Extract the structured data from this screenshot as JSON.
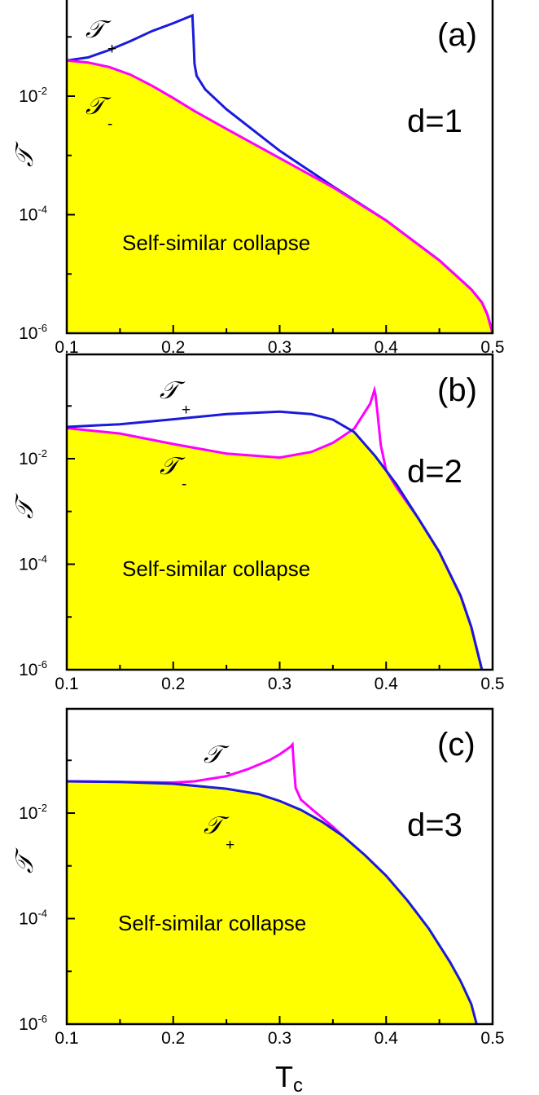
{
  "chart_data": [
    {
      "type": "line",
      "panel_label": "(a)",
      "dimension_label": "d=1",
      "region_label": "Self-similar collapse",
      "ylabel": "𝒯",
      "xlim": [
        0.1,
        0.5
      ],
      "ylim": [
        1e-06,
        1
      ],
      "yscale": "log",
      "x_ticks": [
        "0.1",
        "0.2",
        "0.3",
        "0.4",
        "0.5"
      ],
      "y_ticks": [
        {
          "base": "10",
          "exp": "-2"
        },
        {
          "base": "10",
          "exp": "-4"
        },
        {
          "base": "10",
          "exp": "-6"
        }
      ],
      "series": [
        {
          "name": "+",
          "color": "#1a1adc",
          "x": [
            0.1,
            0.12,
            0.14,
            0.16,
            0.18,
            0.2,
            0.218,
            0.219,
            0.22,
            0.222,
            0.23,
            0.25,
            0.3,
            0.35,
            0.4,
            0.45,
            0.48,
            0.49,
            0.495,
            0.5
          ],
          "y": [
            0.04,
            0.045,
            0.06,
            0.085,
            0.125,
            0.17,
            0.23,
            0.1,
            0.035,
            0.022,
            0.013,
            0.006,
            0.0012,
            0.0003,
            8e-05,
            1.7e-05,
            5.5e-06,
            3.3e-06,
            2.1e-06,
            1e-06
          ]
        },
        {
          "name": "-",
          "color": "#ff00ff",
          "x": [
            0.1,
            0.12,
            0.14,
            0.16,
            0.18,
            0.2,
            0.22,
            0.25,
            0.3,
            0.35,
            0.4,
            0.45,
            0.48,
            0.49,
            0.495,
            0.5
          ],
          "y": [
            0.04,
            0.037,
            0.031,
            0.023,
            0.015,
            0.0093,
            0.0056,
            0.0028,
            0.0009,
            0.00029,
            8e-05,
            1.7e-05,
            5.5e-06,
            3.3e-06,
            2.1e-06,
            1e-06
          ]
        }
      ]
    },
    {
      "type": "line",
      "panel_label": "(b)",
      "dimension_label": "d=2",
      "region_label": "Self-similar collapse",
      "ylabel": "𝒯",
      "xlim": [
        0.1,
        0.5
      ],
      "ylim": [
        1e-06,
        1
      ],
      "yscale": "log",
      "x_ticks": [
        "0.1",
        "0.2",
        "0.3",
        "0.4",
        "0.5"
      ],
      "y_ticks": [
        {
          "base": "10",
          "exp": "-2"
        },
        {
          "base": "10",
          "exp": "-4"
        },
        {
          "base": "10",
          "exp": "-6"
        }
      ],
      "series": [
        {
          "name": "+",
          "color": "#1a1adc",
          "x": [
            0.1,
            0.15,
            0.2,
            0.25,
            0.3,
            0.33,
            0.35,
            0.37,
            0.39,
            0.41,
            0.43,
            0.45,
            0.47,
            0.48,
            0.49
          ],
          "y": [
            0.04,
            0.045,
            0.056,
            0.07,
            0.078,
            0.07,
            0.055,
            0.032,
            0.011,
            0.0032,
            0.00075,
            0.00017,
            2.5e-05,
            6.5e-06,
            1e-06
          ]
        },
        {
          "name": "-",
          "color": "#ff00ff",
          "x": [
            0.1,
            0.15,
            0.2,
            0.25,
            0.3,
            0.33,
            0.35,
            0.37,
            0.385,
            0.389,
            0.39,
            0.392,
            0.395,
            0.4,
            0.41,
            0.43,
            0.45,
            0.47,
            0.48,
            0.49
          ],
          "y": [
            0.038,
            0.03,
            0.019,
            0.0125,
            0.0105,
            0.0135,
            0.02,
            0.037,
            0.11,
            0.2,
            0.16,
            0.07,
            0.018,
            0.006,
            0.0028,
            0.00075,
            0.00017,
            2.5e-05,
            6.5e-06,
            1e-06
          ]
        }
      ]
    },
    {
      "type": "line",
      "panel_label": "(c)",
      "dimension_label": "d=3",
      "region_label": "Self-similar collapse",
      "ylabel": "𝒯",
      "xlim": [
        0.1,
        0.5
      ],
      "ylim": [
        1e-06,
        1
      ],
      "yscale": "log",
      "x_ticks": [
        "0.1",
        "0.2",
        "0.3",
        "0.4",
        "0.5"
      ],
      "y_ticks": [
        {
          "base": "10",
          "exp": "-2"
        },
        {
          "base": "10",
          "exp": "-4"
        },
        {
          "base": "10",
          "exp": "-6"
        }
      ],
      "series": [
        {
          "name": "+",
          "color": "#1a1adc",
          "x": [
            0.1,
            0.15,
            0.2,
            0.25,
            0.28,
            0.3,
            0.32,
            0.34,
            0.36,
            0.38,
            0.4,
            0.42,
            0.44,
            0.46,
            0.47,
            0.48,
            0.485
          ],
          "y": [
            0.04,
            0.039,
            0.036,
            0.029,
            0.023,
            0.017,
            0.0115,
            0.0068,
            0.0036,
            0.0016,
            0.00065,
            0.00022,
            6.5e-05,
            1.5e-05,
            6.5e-06,
            2.4e-06,
            1e-06
          ]
        },
        {
          "name": "-",
          "color": "#ff00ff",
          "x": [
            0.1,
            0.15,
            0.2,
            0.22,
            0.25,
            0.27,
            0.29,
            0.3,
            0.31,
            0.312,
            0.313,
            0.315,
            0.32,
            0.33,
            0.35,
            0.36
          ],
          "y": [
            0.04,
            0.039,
            0.038,
            0.04,
            0.05,
            0.068,
            0.1,
            0.13,
            0.18,
            0.2,
            0.1,
            0.03,
            0.018,
            0.012,
            0.0055,
            0.0036
          ]
        }
      ]
    }
  ],
  "xaxis_label": {
    "base": "T",
    "sub": "c"
  }
}
